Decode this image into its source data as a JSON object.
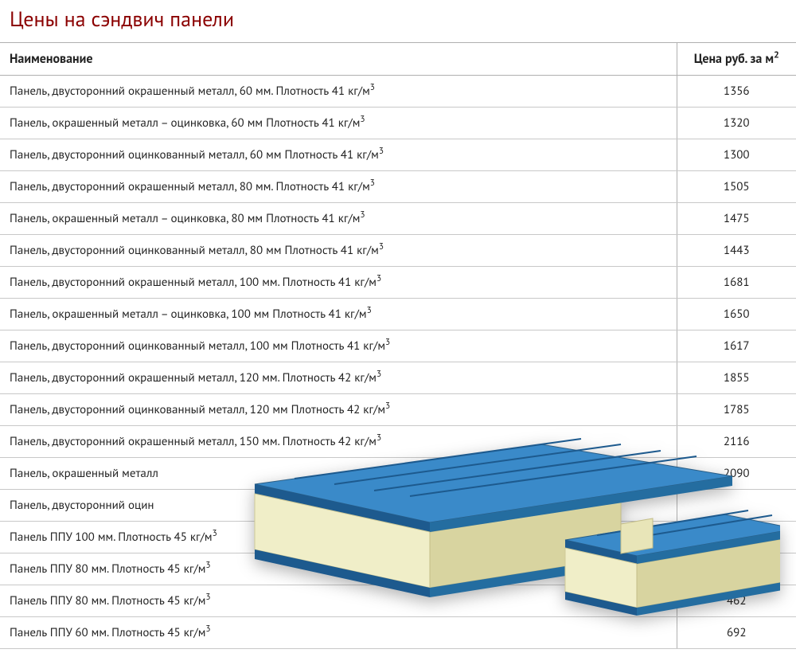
{
  "title": "Цены на сэндвич панели",
  "title_color": "#8b0000",
  "table": {
    "columns": [
      {
        "label": "Наименование",
        "key": "name"
      },
      {
        "label_html": "Цена руб. за м",
        "sup": "2",
        "key": "price"
      }
    ],
    "border_color": "#b0b0b0",
    "row_border_color": "#c8c8c8",
    "text_color": "#222222",
    "font_size": 15,
    "header_font_size": 16,
    "rows": [
      {
        "name": "Панель, двусторонний окрашенный металл, 60 мм. Плотность 41 кг/м",
        "name_sup": "3",
        "price": "1356"
      },
      {
        "name": "Панель, окрашенный металл – оцинковка, 60 мм Плотность 41 кг/м",
        "name_sup": "3",
        "price": "1320"
      },
      {
        "name": "Панель, двусторонний оцинкованный металл, 60 мм Плотность 41 кг/м",
        "name_sup": "3",
        "price": "1300"
      },
      {
        "name": "Панель, двусторонний окрашенный металл, 80 мм. Плотность 41 кг/м",
        "name_sup": "3",
        "price": "1505"
      },
      {
        "name": "Панель, окрашенный металл – оцинковка, 80 мм Плотность 41 кг/м",
        "name_sup": "3",
        "price": "1475"
      },
      {
        "name": "Панель, двусторонний оцинкованный металл, 80 мм Плотность 41 кг/м",
        "name_sup": "3",
        "price": "1443"
      },
      {
        "name": "Панель, двусторонний окрашенный металл, 100 мм. Плотность 41 кг/м",
        "name_sup": "3",
        "price": "1681"
      },
      {
        "name": "Панель, окрашенный металл – оцинковка, 100 мм Плотность 41 кг/м",
        "name_sup": "3",
        "price": "1650"
      },
      {
        "name": "Панель, двусторонний оцинкованный металл, 100 мм Плотность 41 кг/м",
        "name_sup": "3",
        "price": "1617"
      },
      {
        "name": "Панель, двусторонний окрашенный металл, 120 мм. Плотность 42 кг/м",
        "name_sup": "3",
        "price": "1855"
      },
      {
        "name": "Панель, двусторонний оцинкованный металл, 120 мм Плотность 42 кг/м",
        "name_sup": "3",
        "price": "1785"
      },
      {
        "name": "Панель, двусторонний окрашенный металл, 150 мм. Плотность 42 кг/м",
        "name_sup": "3",
        "price": "2116"
      },
      {
        "name": "Панель, окрашенный металл",
        "name_sup": "",
        "price": "2090"
      },
      {
        "name": "Панель, двусторонний оцин",
        "name_sup": "",
        "price": ""
      },
      {
        "name": "Панель ППУ 100 мм. Плотность 45 кг/м",
        "name_sup": "3",
        "price": ""
      },
      {
        "name": "Панель ППУ 80 мм. Плотность 45 кг/м",
        "name_sup": "3",
        "price": ""
      },
      {
        "name": "Панель ППУ 80 мм. Плотность 45 кг/м",
        "name_sup": "3",
        "price": "462"
      },
      {
        "name": "Панель ППУ 60 мм. Плотность 45 кг/м",
        "name_sup": "3",
        "price": "692"
      }
    ]
  },
  "illustration": {
    "top_color": "#2b7bbf",
    "top_highlight": "#4a9bd6",
    "top_shadow": "#1d5a8e",
    "core_color": "#f0eec8",
    "core_shadow": "#d8d4a0",
    "core_highlight": "#fbf9e0",
    "outline": "#3a3a3a"
  }
}
